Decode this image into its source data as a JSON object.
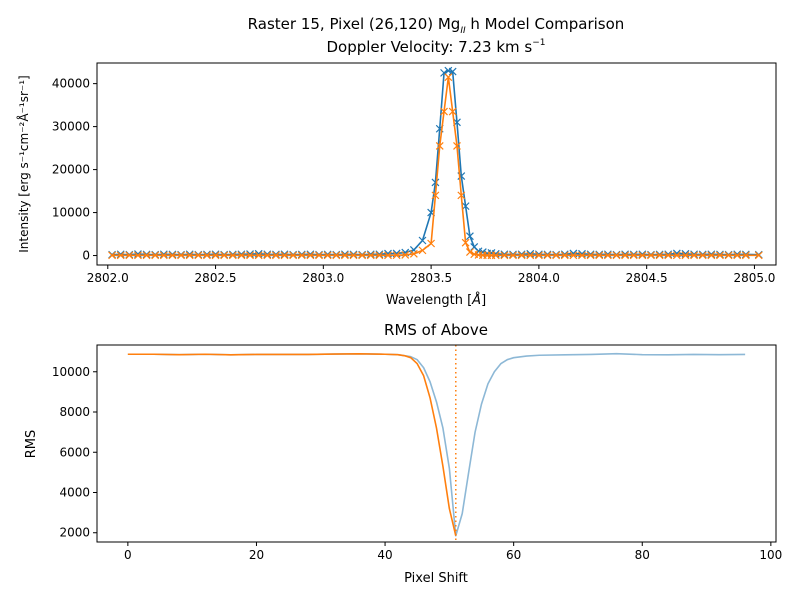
{
  "chart_data": [
    {
      "type": "line",
      "title_main": "Raster 15, Pixel (26,120) Mg",
      "title_sub_script": "II",
      "title_suffix": " h Model Comparison",
      "subtitle_prefix": "Doppler Velocity: 7.23 km s",
      "subtitle_sup": "−1",
      "xlabel_prefix": "Wavelength [",
      "xlabel_unit": "Å",
      "xlabel_suffix": "]",
      "ylabel": "Intensity [erg s⁻¹cm⁻²Å⁻¹sr⁻¹]",
      "xlim": [
        2801.95,
        2805.1
      ],
      "ylim": [
        -2200,
        44800
      ],
      "xticks": [
        2802.0,
        2802.5,
        2803.0,
        2803.5,
        2804.0,
        2804.5,
        2805.0
      ],
      "xtick_labels": [
        "2802.0",
        "2802.5",
        "2803.0",
        "2803.5",
        "2804.0",
        "2804.5",
        "2805.0"
      ],
      "yticks": [
        0,
        10000,
        20000,
        30000,
        40000
      ],
      "ytick_labels": [
        "0",
        "10000",
        "20000",
        "30000",
        "40000"
      ],
      "marker": "x",
      "grid": false,
      "series": [
        {
          "color": "#1f77b4",
          "x": [
            2802.02,
            2802.06,
            2802.1,
            2802.14,
            2802.18,
            2802.22,
            2802.26,
            2802.3,
            2802.34,
            2802.38,
            2802.42,
            2802.46,
            2802.5,
            2802.54,
            2802.58,
            2802.62,
            2802.66,
            2802.7,
            2802.74,
            2802.78,
            2802.82,
            2802.86,
            2802.9,
            2802.94,
            2802.98,
            2803.02,
            2803.06,
            2803.1,
            2803.14,
            2803.18,
            2803.22,
            2803.26,
            2803.3,
            2803.34,
            2803.38,
            2803.42,
            2803.46,
            2803.5,
            2803.52,
            2803.54,
            2803.56,
            2803.58,
            2803.6,
            2803.62,
            2803.64,
            2803.66,
            2803.68,
            2803.7,
            2803.72,
            2803.74,
            2803.76,
            2803.78,
            2803.8,
            2803.84,
            2803.88,
            2803.92,
            2803.96,
            2804.0,
            2804.04,
            2804.08,
            2804.12,
            2804.16,
            2804.2,
            2804.24,
            2804.28,
            2804.32,
            2804.36,
            2804.4,
            2804.44,
            2804.48,
            2804.52,
            2804.56,
            2804.6,
            2804.64,
            2804.68,
            2804.72,
            2804.76,
            2804.8,
            2804.84,
            2804.88,
            2804.92,
            2804.96,
            2805.02
          ],
          "y": [
            200,
            300,
            200,
            350,
            250,
            200,
            300,
            250,
            200,
            300,
            200,
            250,
            300,
            200,
            250,
            300,
            350,
            400,
            300,
            250,
            300,
            200,
            250,
            300,
            200,
            250,
            200,
            300,
            250,
            200,
            300,
            300,
            450,
            500,
            700,
            1300,
            3500,
            10000,
            17000,
            29500,
            42500,
            43000,
            42800,
            31000,
            18500,
            11500,
            4500,
            2000,
            1000,
            800,
            500,
            600,
            400,
            300,
            250,
            300,
            400,
            300,
            250,
            200,
            300,
            500,
            400,
            300,
            250,
            300,
            200,
            300,
            250,
            300,
            200,
            250,
            300,
            500,
            400,
            300,
            250,
            300,
            250,
            200,
            300,
            250,
            200
          ]
        },
        {
          "color": "#ff7f0e",
          "x": [
            2802.02,
            2802.06,
            2802.1,
            2802.14,
            2802.18,
            2802.22,
            2802.26,
            2802.3,
            2802.34,
            2802.38,
            2802.42,
            2802.46,
            2802.5,
            2802.54,
            2802.58,
            2802.62,
            2802.66,
            2802.7,
            2802.74,
            2802.78,
            2802.82,
            2802.86,
            2802.9,
            2802.94,
            2802.98,
            2803.02,
            2803.06,
            2803.1,
            2803.14,
            2803.18,
            2803.22,
            2803.26,
            2803.3,
            2803.34,
            2803.38,
            2803.42,
            2803.46,
            2803.5,
            2803.52,
            2803.54,
            2803.56,
            2803.58,
            2803.6,
            2803.62,
            2803.64,
            2803.66,
            2803.68,
            2803.7,
            2803.72,
            2803.74,
            2803.76,
            2803.78,
            2803.8,
            2803.84,
            2803.88,
            2803.92,
            2803.96,
            2804.0,
            2804.04,
            2804.08,
            2804.12,
            2804.16,
            2804.2,
            2804.24,
            2804.28,
            2804.32,
            2804.36,
            2804.4,
            2804.44,
            2804.48,
            2804.52,
            2804.56,
            2804.6,
            2804.64,
            2804.68,
            2804.72,
            2804.76,
            2804.8,
            2804.84,
            2804.88,
            2804.92,
            2804.96,
            2805.02
          ],
          "y": [
            50,
            50,
            50,
            50,
            50,
            50,
            50,
            50,
            50,
            50,
            50,
            50,
            50,
            50,
            50,
            50,
            50,
            50,
            50,
            50,
            50,
            50,
            50,
            50,
            50,
            50,
            50,
            50,
            50,
            50,
            50,
            50,
            60,
            80,
            150,
            400,
            1200,
            2800,
            14000,
            25500,
            33500,
            41500,
            33500,
            25500,
            14000,
            3000,
            800,
            300,
            150,
            80,
            60,
            50,
            50,
            50,
            50,
            50,
            50,
            50,
            50,
            50,
            50,
            50,
            50,
            50,
            50,
            50,
            50,
            50,
            50,
            50,
            50,
            50,
            50,
            50,
            50,
            50,
            50,
            50,
            50,
            50,
            50,
            50,
            50
          ]
        }
      ]
    },
    {
      "type": "line",
      "title": "RMS of Above",
      "xlabel": "Pixel Shift",
      "ylabel": "RMS",
      "xlim": [
        -4.8,
        100.8
      ],
      "ylim": [
        1540,
        11330
      ],
      "xticks": [
        0,
        20,
        40,
        60,
        80,
        100
      ],
      "xtick_labels": [
        "0",
        "20",
        "40",
        "60",
        "80",
        "100"
      ],
      "yticks": [
        2000,
        4000,
        6000,
        8000,
        10000
      ],
      "ytick_labels": [
        "2000",
        "4000",
        "6000",
        "8000",
        "10000"
      ],
      "grid": false,
      "vline": {
        "x": 51,
        "color": "#ff7f0e",
        "style": "dotted"
      },
      "series": [
        {
          "color": "#8db8d6",
          "x": [
            0,
            4,
            8,
            12,
            16,
            20,
            24,
            28,
            32,
            36,
            40,
            42,
            44,
            45,
            46,
            47,
            48,
            49,
            50,
            51,
            52,
            53,
            54,
            55,
            56,
            57,
            58,
            59,
            60,
            62,
            64,
            68,
            72,
            76,
            80,
            84,
            88,
            92,
            96
          ],
          "y": [
            10870,
            10870,
            10850,
            10870,
            10840,
            10860,
            10860,
            10860,
            10880,
            10890,
            10870,
            10850,
            10750,
            10600,
            10200,
            9500,
            8500,
            7200,
            5200,
            1850,
            2950,
            5000,
            7000,
            8400,
            9400,
            10000,
            10400,
            10600,
            10700,
            10780,
            10820,
            10840,
            10860,
            10900,
            10850,
            10840,
            10860,
            10850,
            10860
          ]
        },
        {
          "color": "#ff7f0e",
          "x": [
            0,
            4,
            8,
            12,
            16,
            20,
            24,
            28,
            32,
            36,
            40,
            42,
            43,
            44,
            45,
            46,
            47,
            48,
            49,
            50,
            51
          ],
          "y": [
            10870,
            10870,
            10850,
            10870,
            10840,
            10860,
            10860,
            10860,
            10880,
            10890,
            10870,
            10850,
            10800,
            10700,
            10400,
            9800,
            8700,
            7200,
            5300,
            3200,
            1850
          ]
        }
      ]
    }
  ]
}
